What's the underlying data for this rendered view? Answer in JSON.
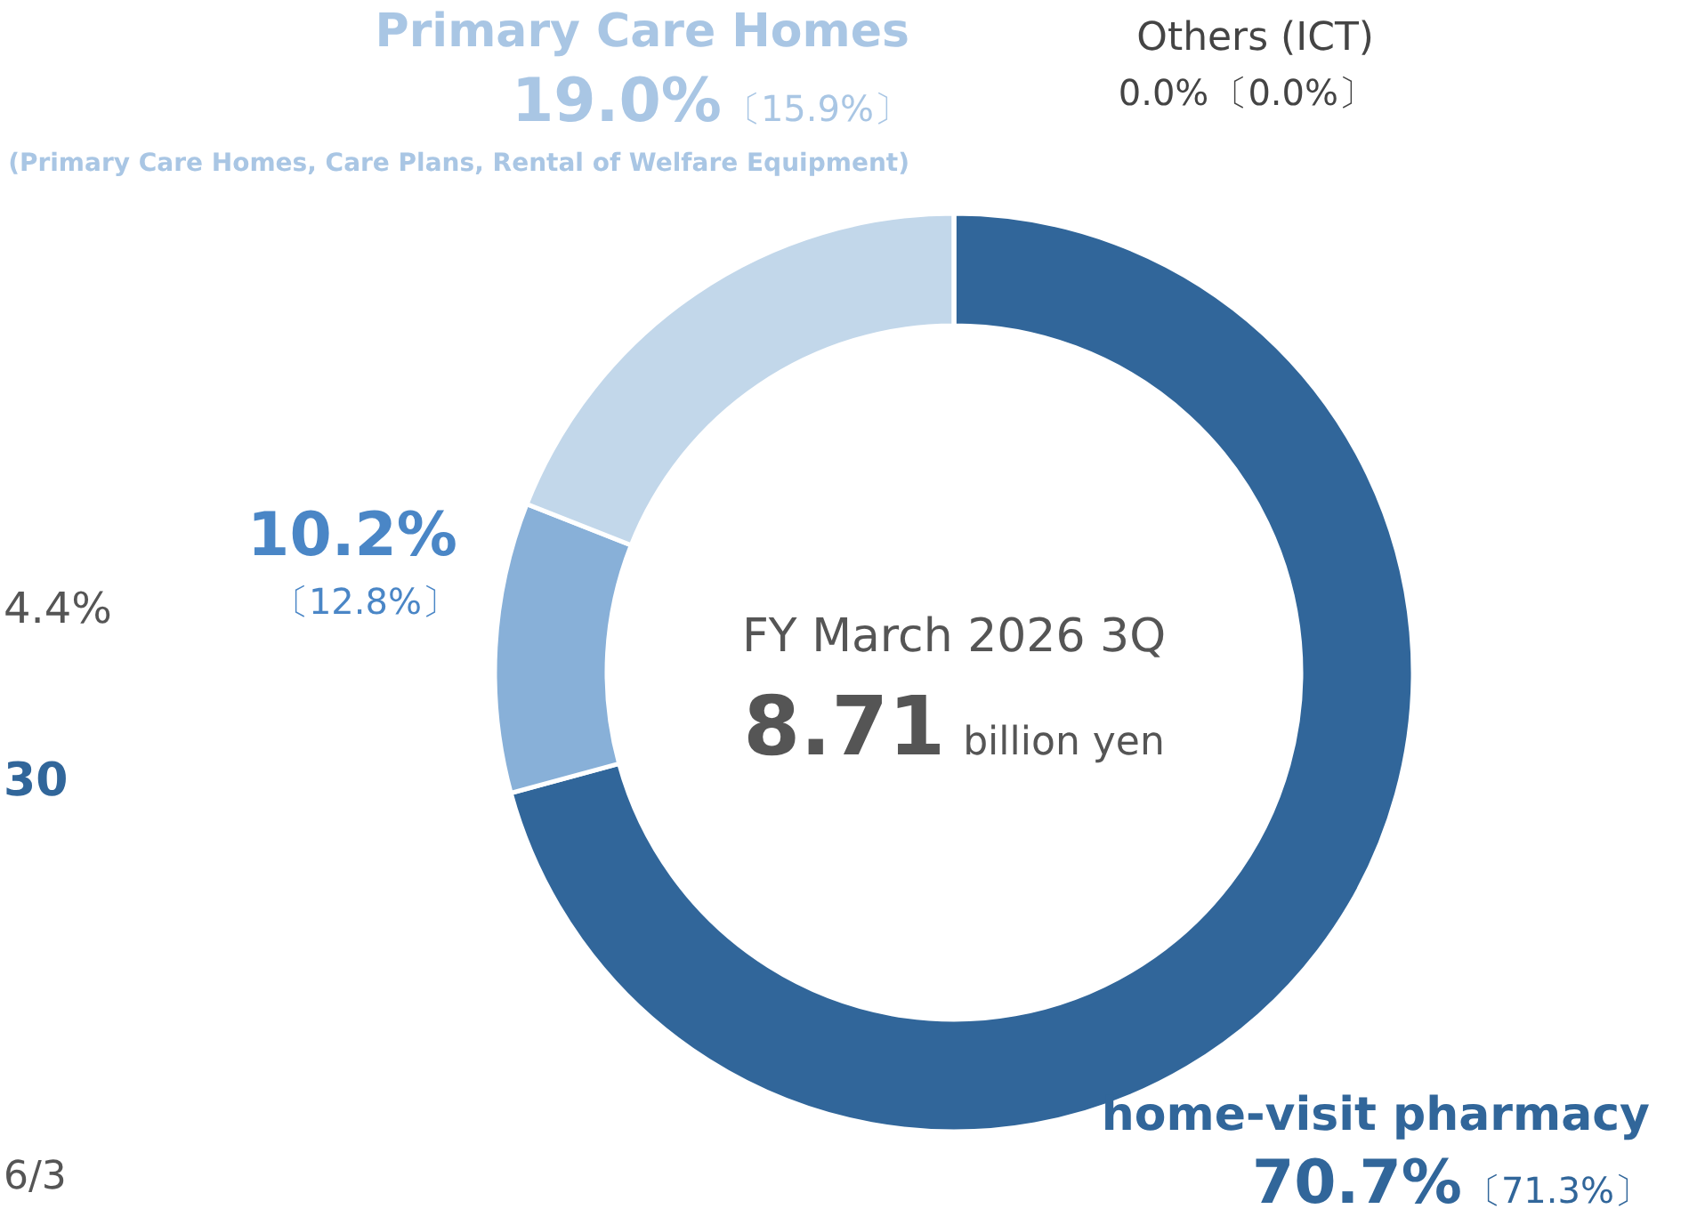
{
  "chart_data": {
    "type": "donut",
    "title": "FY March 2026 3Q",
    "categories": [
      "home-visit pharmacy",
      null,
      "Primary Care Homes",
      "Others (ICT)"
    ],
    "values": [
      70.7,
      10.2,
      19.0,
      0.0
    ],
    "value_labels": [
      "70.7%",
      "10.2%",
      "19.0%",
      "0.0%"
    ],
    "colors": [
      "#31669a",
      "#88b0d8",
      "#c2d7ea",
      "#d9d9d9"
    ],
    "annotations": [
      "8.71",
      "billion yen",
      "(Primary Care Homes, Care Plans, Rental of Welfare Equipment)",
      "〔71.3%〕",
      "〔12.8%〕",
      "〔15.9%〕",
      "〔0.0%〕",
      "4.4%",
      "30",
      "6/3"
    ]
  }
}
